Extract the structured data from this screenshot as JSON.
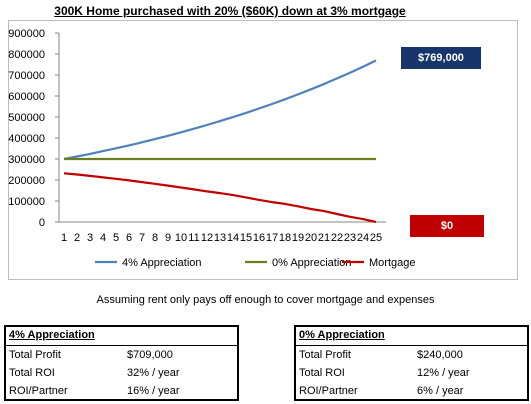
{
  "title": "300K Home purchased with 20% ($60K) down at 3% mortgage",
  "callouts": {
    "top": "$769,000",
    "bottom": "$0"
  },
  "note": "Assuming rent only pays off enough to cover mortgage and expenses",
  "colors": {
    "appreciation4": "#4f81bd",
    "appreciation0": "#6b7f1f",
    "mortgage": "#c00000",
    "callout_top": "#17346b",
    "callout_bottom": "#c00000"
  },
  "boxes": [
    {
      "title": "4% Appreciation",
      "rows": [
        {
          "label": "Total Profit",
          "value": "$709,000"
        },
        {
          "label": "Total ROI",
          "value": "32% / year"
        },
        {
          "label": "ROI/Partner",
          "value": "16% / year"
        }
      ]
    },
    {
      "title": "0% Appreciation",
      "rows": [
        {
          "label": "Total Profit",
          "value": "$240,000"
        },
        {
          "label": "Total ROI",
          "value": "12% / year"
        },
        {
          "label": "ROI/Partner",
          "value": "6% / year"
        }
      ]
    }
  ],
  "chart_data": {
    "type": "line",
    "title": "",
    "xlabel": "",
    "ylabel": "",
    "x": [
      1,
      2,
      3,
      4,
      5,
      6,
      7,
      8,
      9,
      10,
      11,
      12,
      13,
      14,
      15,
      16,
      17,
      18,
      19,
      20,
      21,
      22,
      23,
      24,
      25
    ],
    "ylim": [
      0,
      900000
    ],
    "yticks": [
      "0",
      "100000",
      "200000",
      "300000",
      "400000",
      "500000",
      "600000",
      "700000",
      "800000",
      "900000"
    ],
    "ytick_values": [
      0,
      100000,
      200000,
      300000,
      400000,
      500000,
      600000,
      700000,
      800000,
      900000
    ],
    "grid": false,
    "legend_position": "bottom",
    "series": [
      {
        "name": "4% Appreciation",
        "color": "#4f81bd",
        "values": [
          300000,
          312000,
          324480,
          337459,
          350958,
          364996,
          379596,
          394780,
          410571,
          426994,
          444074,
          461837,
          480310,
          499523,
          519503,
          540283,
          561894,
          584370,
          607745,
          632055,
          657337,
          683630,
          710975,
          739414,
          768991
        ]
      },
      {
        "name": "0% Appreciation",
        "color": "#6b7f1f",
        "values": [
          300000,
          300000,
          300000,
          300000,
          300000,
          300000,
          300000,
          300000,
          300000,
          300000,
          300000,
          300000,
          300000,
          300000,
          300000,
          300000,
          300000,
          300000,
          300000,
          300000,
          300000,
          300000,
          300000,
          300000,
          300000
        ]
      },
      {
        "name": "Mortgage",
        "color": "#c00000",
        "values": [
          232000,
          226000,
          219500,
          212500,
          205500,
          198000,
          190000,
          182000,
          173500,
          164500,
          155000,
          145500,
          137500,
          128000,
          117000,
          105000,
          95000,
          86000,
          75000,
          62000,
          52000,
          38000,
          25000,
          14000,
          0
        ]
      }
    ]
  }
}
